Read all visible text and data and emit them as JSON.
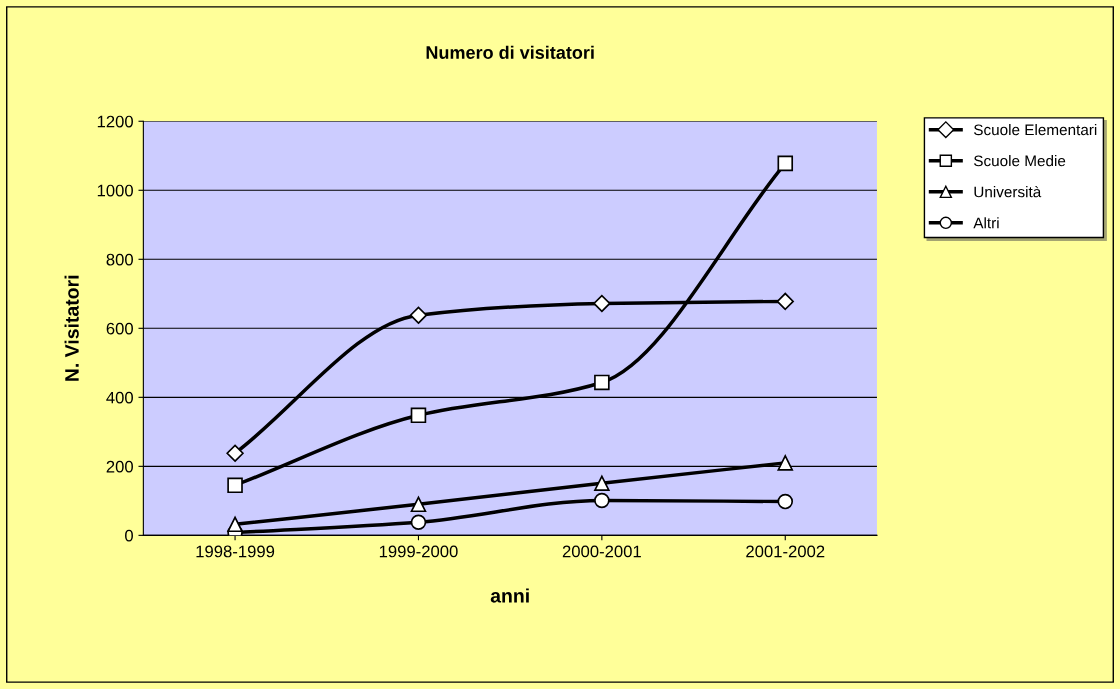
{
  "chart_data": {
    "type": "line",
    "title": "Numero di visitatori",
    "xlabel": "anni",
    "ylabel": "N. Visitatori",
    "categories": [
      "1998-1999",
      "1999-2000",
      "2000-2001",
      "2001-2002"
    ],
    "series": [
      {
        "name": "Scuole Elementari",
        "color": "#000000",
        "marker": "diamond",
        "values": [
          238,
          638,
          672,
          678
        ]
      },
      {
        "name": "Scuole Medie",
        "color": "#000000",
        "marker": "square",
        "values": [
          145,
          348,
          443,
          1078
        ]
      },
      {
        "name": "Università",
        "color": "#000000",
        "marker": "triangle",
        "values": [
          32,
          90,
          151,
          210
        ]
      },
      {
        "name": "Altri",
        "color": "#000000",
        "marker": "circle",
        "values": [
          8,
          38,
          101,
          98
        ]
      }
    ],
    "ylim": [
      0,
      1200
    ],
    "yticks": [
      0,
      200,
      400,
      600,
      800,
      1000,
      1200
    ],
    "grid": "y",
    "legend": "right",
    "line_style": "solid"
  }
}
